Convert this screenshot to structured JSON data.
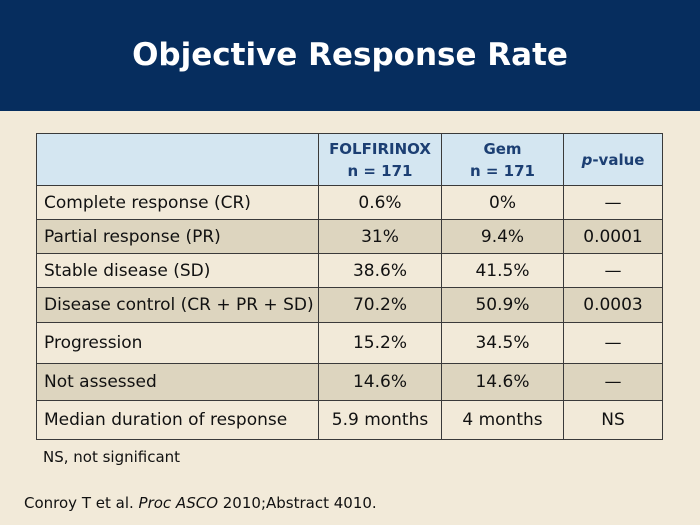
{
  "slide": {
    "title": "Objective Response Rate"
  },
  "table": {
    "headers": {
      "blank": "",
      "col1_line1": "FOLFIRINOX",
      "col1_line2": "n = 171",
      "col2_line1": "Gem",
      "col2_line2": "n = 171",
      "col3_italic": "p",
      "col3_rest": "-value"
    },
    "rows": [
      {
        "label": "Complete response (CR)",
        "folfirinox": "0.6%",
        "gem": "0%",
        "p": "—"
      },
      {
        "label": "Partial response (PR)",
        "folfirinox": "31%",
        "gem": "9.4%",
        "p": "0.0001"
      },
      {
        "label": "Stable disease (SD)",
        "folfirinox": "38.6%",
        "gem": "41.5%",
        "p": "—"
      },
      {
        "label": "Disease control (CR + PR + SD)",
        "folfirinox": "70.2%",
        "gem": "50.9%",
        "p": "0.0003"
      },
      {
        "label": "Progression",
        "folfirinox": "15.2%",
        "gem": "34.5%",
        "p": "—"
      },
      {
        "label": "Not assessed",
        "folfirinox": "14.6%",
        "gem": "14.6%",
        "p": "—"
      },
      {
        "label": "Median duration of response",
        "folfirinox": "5.9 months",
        "gem": "4 months",
        "p": "NS"
      }
    ]
  },
  "footnote": "NS, not significant",
  "citation": {
    "authors": "Conroy T et al. ",
    "journal": "Proc ASCO",
    "rest": " 2010;Abstract 4010."
  },
  "colors": {
    "header_bg": "#062d5e",
    "page_bg": "#f2ead9",
    "table_header_bg": "#d4e6f1",
    "row_alt_bg": "#ddd5bf"
  }
}
